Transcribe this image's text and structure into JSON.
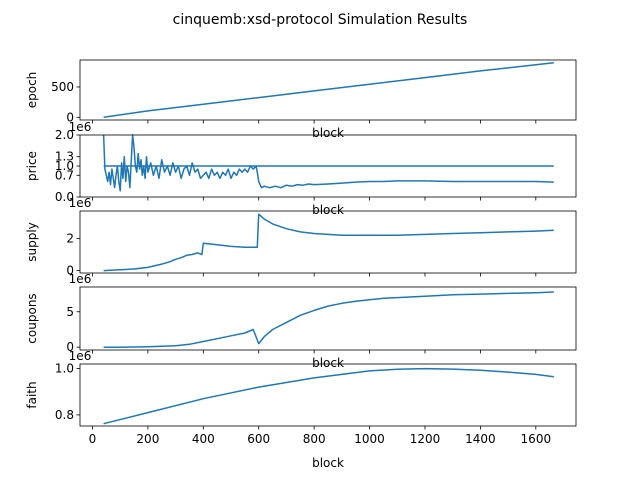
{
  "title": "cinquemb:xsd-protocol Simulation Results",
  "colors": {
    "line": "#1f77b4",
    "axis": "#000000",
    "background": "#ffffff"
  },
  "chart_data": [
    {
      "type": "line",
      "ylabel": "epoch",
      "xlabel": "block",
      "ylim": [
        -45,
        945
      ],
      "yticks": [
        0,
        500
      ],
      "ytick_labels": [
        "0",
        "500"
      ],
      "offset_text": "",
      "series": [
        {
          "x": [
            40,
            200,
            400,
            600,
            800,
            1000,
            1200,
            1400,
            1600,
            1665
          ],
          "y": [
            0,
            105,
            215,
            325,
            435,
            545,
            655,
            765,
            865,
            900
          ]
        }
      ]
    },
    {
      "type": "line",
      "ylabel": "price",
      "xlabel": "block",
      "ylim": [
        0,
        2.0
      ],
      "yticks": [
        0,
        0.7,
        1.0,
        1.3,
        2.0
      ],
      "ytick_labels": [
        "0.0",
        "0.7",
        "1.0",
        "1.3",
        "2.0"
      ],
      "offset_text": "1e6",
      "series": [
        {
          "x": [
            40,
            1665
          ],
          "y": [
            1.0,
            1.0
          ]
        },
        {
          "x": [
            40,
            45,
            50,
            55,
            60,
            65,
            70,
            75,
            80,
            85,
            90,
            95,
            100,
            105,
            110,
            115,
            120,
            125,
            130,
            135,
            140,
            145,
            150,
            155,
            160,
            165,
            170,
            175,
            180,
            185,
            190,
            195,
            200,
            210,
            220,
            230,
            240,
            250,
            260,
            270,
            280,
            290,
            300,
            310,
            320,
            330,
            340,
            350,
            360,
            370,
            380,
            390,
            400,
            410,
            420,
            430,
            440,
            450,
            460,
            470,
            480,
            490,
            500,
            510,
            520,
            530,
            540,
            550,
            560,
            570,
            580,
            590,
            595,
            600,
            610,
            620,
            640,
            660,
            680,
            700,
            720,
            740,
            760,
            780,
            800,
            850,
            900,
            950,
            1000,
            1050,
            1100,
            1200,
            1300,
            1400,
            1500,
            1600,
            1665
          ],
          "y": [
            2.0,
            0.9,
            0.7,
            0.5,
            0.8,
            0.4,
            0.9,
            0.6,
            0.3,
            0.7,
            1.0,
            0.5,
            0.2,
            1.1,
            0.6,
            1.3,
            0.5,
            1.0,
            0.8,
            0.3,
            1.2,
            2.0,
            1.6,
            1.0,
            0.8,
            1.4,
            0.9,
            1.2,
            0.7,
            1.0,
            0.6,
            1.3,
            0.8,
            1.1,
            0.7,
            1.0,
            0.6,
            1.2,
            0.8,
            1.0,
            0.7,
            1.1,
            0.8,
            1.0,
            0.6,
            0.9,
            1.0,
            0.7,
            1.1,
            0.8,
            0.9,
            0.6,
            0.7,
            0.8,
            0.6,
            0.9,
            0.7,
            0.8,
            0.6,
            0.8,
            0.7,
            0.9,
            0.6,
            0.8,
            0.7,
            0.9,
            0.8,
            0.9,
            0.8,
            1.0,
            0.9,
            1.0,
            0.8,
            0.5,
            0.3,
            0.35,
            0.3,
            0.35,
            0.3,
            0.38,
            0.35,
            0.4,
            0.38,
            0.42,
            0.4,
            0.42,
            0.45,
            0.48,
            0.5,
            0.5,
            0.52,
            0.52,
            0.5,
            0.5,
            0.5,
            0.5,
            0.48
          ]
        }
      ]
    },
    {
      "type": "line",
      "ylabel": "supply",
      "xlabel": "",
      "ylim": [
        -0.15,
        3.7
      ],
      "yticks": [
        0,
        2
      ],
      "ytick_labels": [
        "0",
        "2"
      ],
      "offset_text": "1e6",
      "series": [
        {
          "x": [
            40,
            100,
            150,
            200,
            250,
            280,
            300,
            320,
            340,
            360,
            380,
            395,
            400,
            450,
            500,
            550,
            580,
            595,
            600,
            620,
            650,
            700,
            750,
            800,
            850,
            900,
            950,
            1000,
            1050,
            1100,
            1200,
            1300,
            1400,
            1500,
            1600,
            1665
          ],
          "y": [
            0.0,
            0.05,
            0.1,
            0.2,
            0.4,
            0.55,
            0.7,
            0.8,
            0.95,
            1.0,
            1.1,
            1.0,
            1.7,
            1.6,
            1.5,
            1.45,
            1.45,
            1.45,
            3.5,
            3.2,
            2.9,
            2.6,
            2.4,
            2.3,
            2.25,
            2.2,
            2.2,
            2.2,
            2.2,
            2.2,
            2.25,
            2.3,
            2.35,
            2.4,
            2.45,
            2.5
          ]
        }
      ]
    },
    {
      "type": "line",
      "ylabel": "coupons",
      "xlabel": "block",
      "ylim": [
        -0.4,
        8.5
      ],
      "yticks": [
        0,
        5
      ],
      "ytick_labels": [
        "0",
        "5"
      ],
      "offset_text": "1e6",
      "series": [
        {
          "x": [
            40,
            100,
            200,
            300,
            350,
            400,
            450,
            500,
            550,
            580,
            590,
            600,
            620,
            650,
            700,
            750,
            800,
            850,
            900,
            950,
            1000,
            1050,
            1100,
            1200,
            1300,
            1400,
            1500,
            1600,
            1665
          ],
          "y": [
            0.0,
            0.0,
            0.05,
            0.2,
            0.4,
            0.8,
            1.2,
            1.6,
            2.0,
            2.5,
            1.5,
            0.5,
            1.5,
            2.5,
            3.5,
            4.5,
            5.2,
            5.8,
            6.2,
            6.5,
            6.7,
            6.9,
            7.0,
            7.2,
            7.4,
            7.5,
            7.6,
            7.7,
            7.8
          ]
        }
      ]
    },
    {
      "type": "line",
      "ylabel": "faith",
      "xlabel": "block",
      "ylim": [
        0.752,
        1.02
      ],
      "yticks": [
        0.8,
        1.0
      ],
      "ytick_labels": [
        "0.8",
        "1.0"
      ],
      "offset_text": "1e6",
      "xticks": [
        0,
        200,
        400,
        600,
        800,
        1000,
        1200,
        1400,
        1600
      ],
      "xtick_labels": [
        "0",
        "200",
        "400",
        "600",
        "800",
        "1000",
        "1200",
        "1400",
        "1600"
      ],
      "series": [
        {
          "x": [
            40,
            200,
            400,
            600,
            800,
            1000,
            1100,
            1200,
            1300,
            1400,
            1500,
            1600,
            1665
          ],
          "y": [
            0.762,
            0.81,
            0.87,
            0.92,
            0.96,
            0.99,
            0.997,
            1.0,
            0.998,
            0.993,
            0.985,
            0.975,
            0.965
          ]
        }
      ]
    }
  ],
  "xlim": [
    -45,
    1745
  ]
}
